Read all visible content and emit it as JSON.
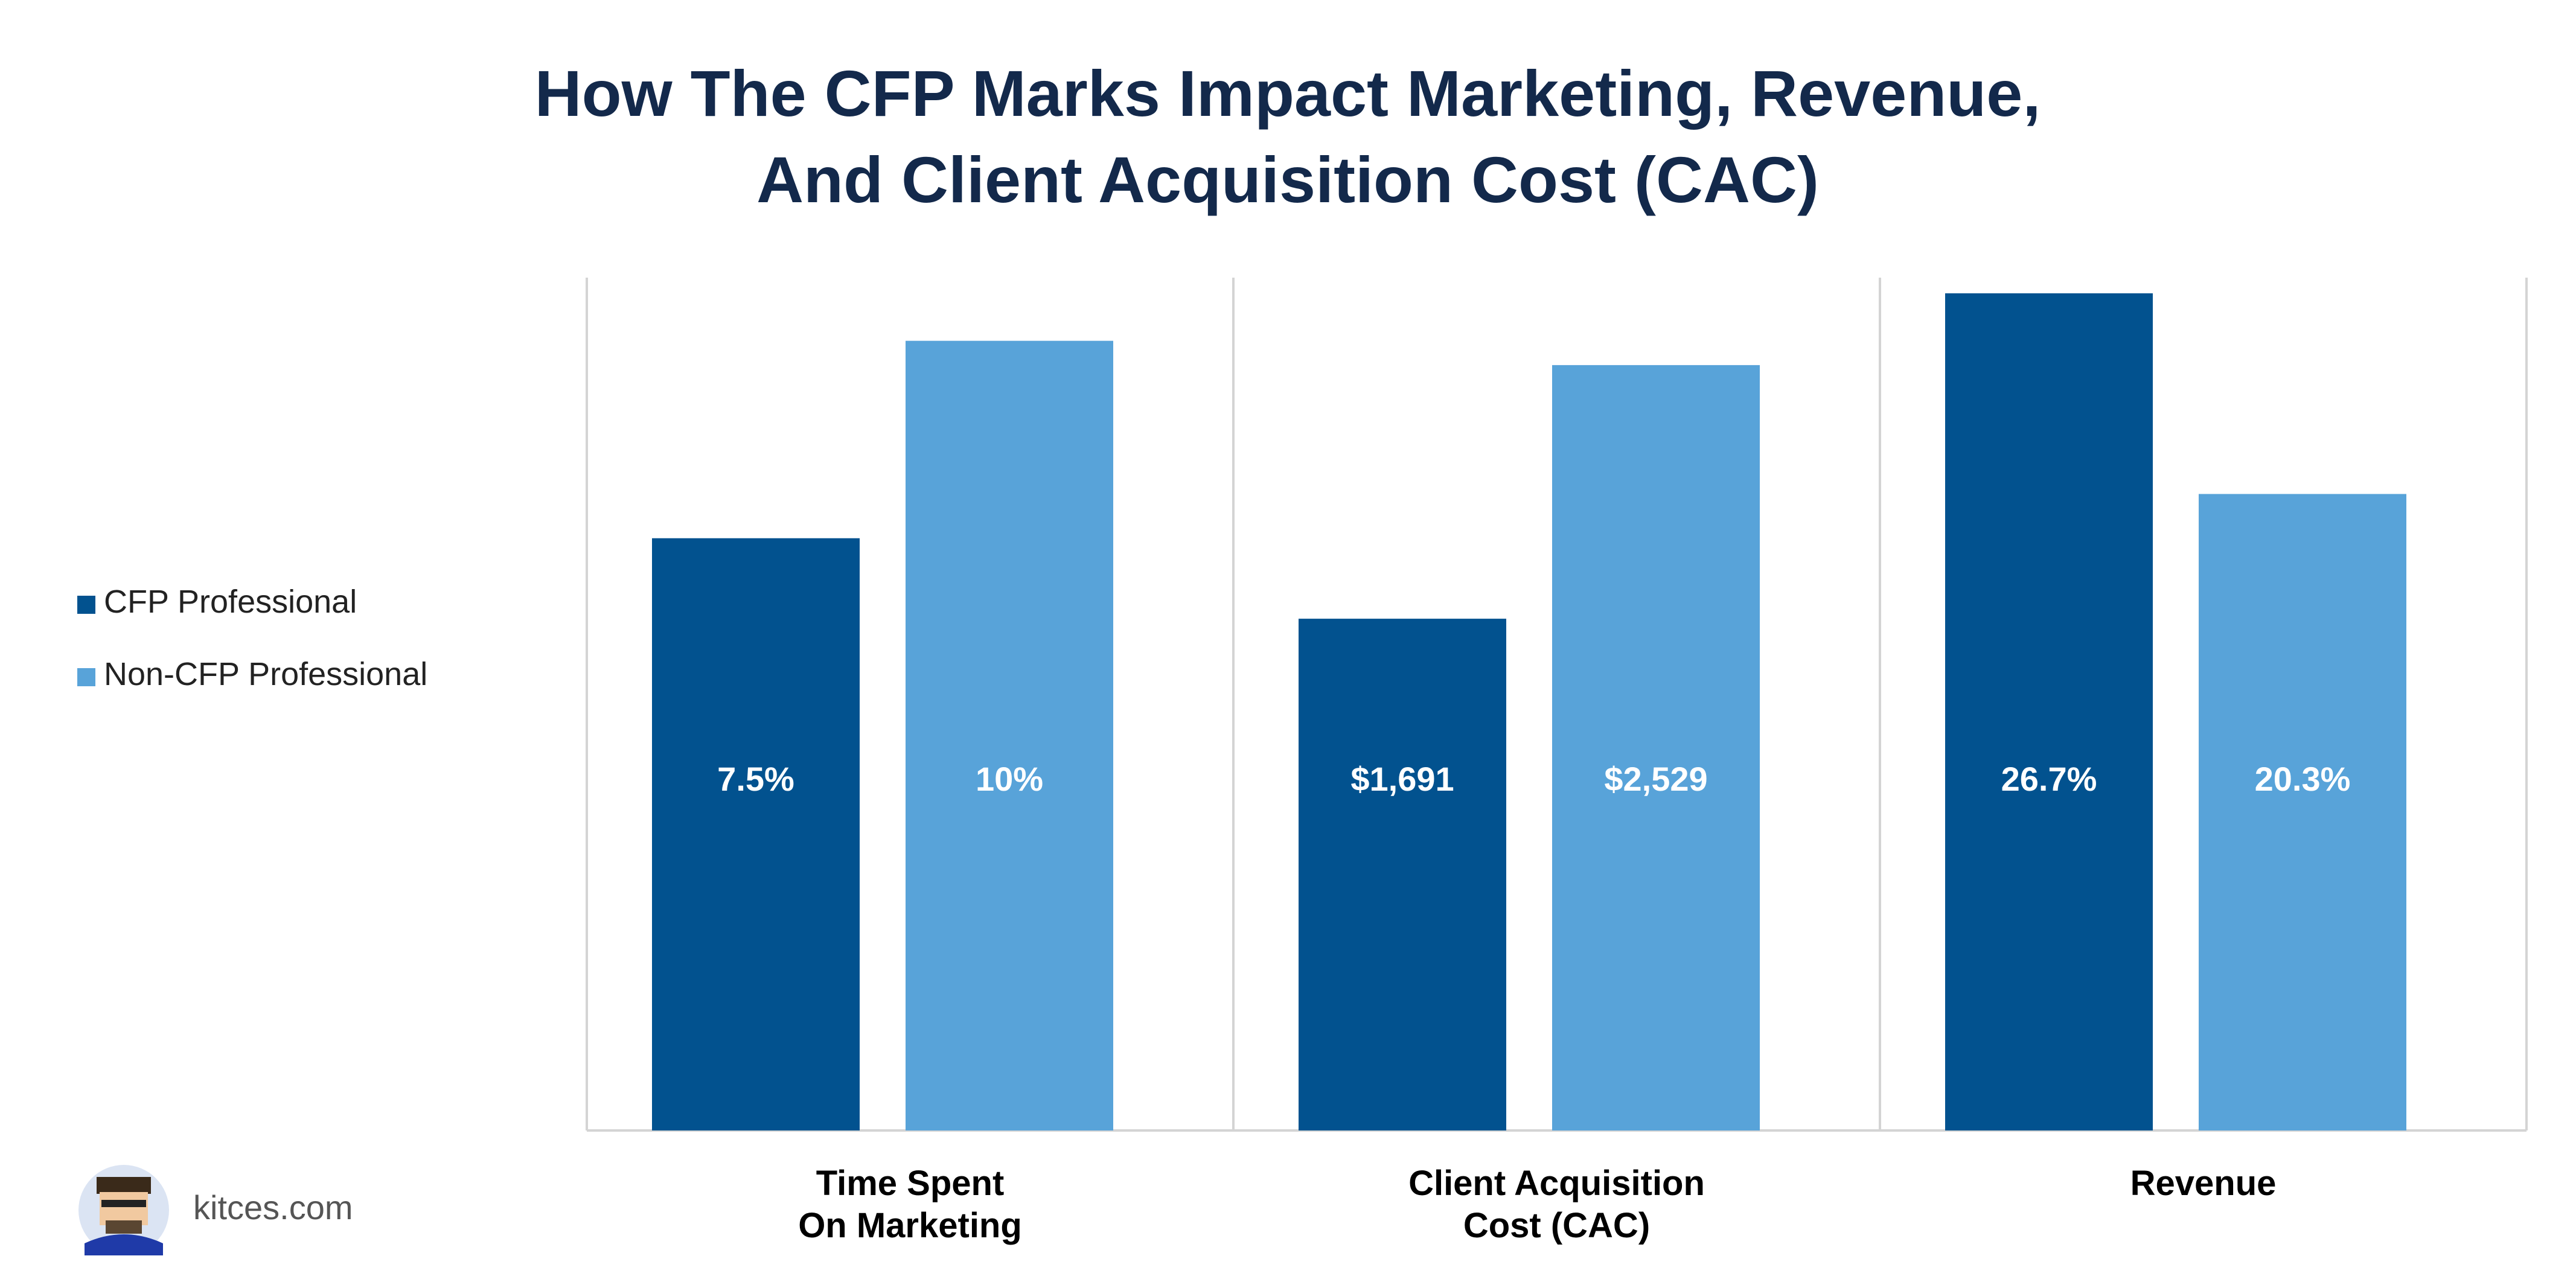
{
  "brand": {
    "text": "kitces.com"
  },
  "chart_data": {
    "type": "bar",
    "title_lines": [
      "How The CFP Marks Impact Marketing, Revenue,",
      "And Client Acquisition Cost (CAC)"
    ],
    "categories": [
      {
        "lines": [
          "Time Spent",
          "On Marketing"
        ]
      },
      {
        "lines": [
          "Client Acquisition",
          "Cost (CAC)"
        ]
      },
      {
        "lines": [
          "Revenue"
        ]
      }
    ],
    "series": [
      {
        "name": "CFP Professional",
        "color": "#02528f",
        "values": [
          7.5,
          1691,
          26.7
        ],
        "labels": [
          "7.5%",
          "$1,691",
          "26.7%"
        ]
      },
      {
        "name": "Non-CFP Professional",
        "color": "#58a3d9",
        "values": [
          10,
          2529,
          20.3
        ],
        "labels": [
          "10%",
          "$2,529",
          "20.3%"
        ]
      }
    ],
    "panel_ylim": [
      [
        0,
        10.8
      ],
      [
        0,
        2818
      ],
      [
        0,
        27.2
      ]
    ],
    "legend_position": "left",
    "grid": false
  }
}
